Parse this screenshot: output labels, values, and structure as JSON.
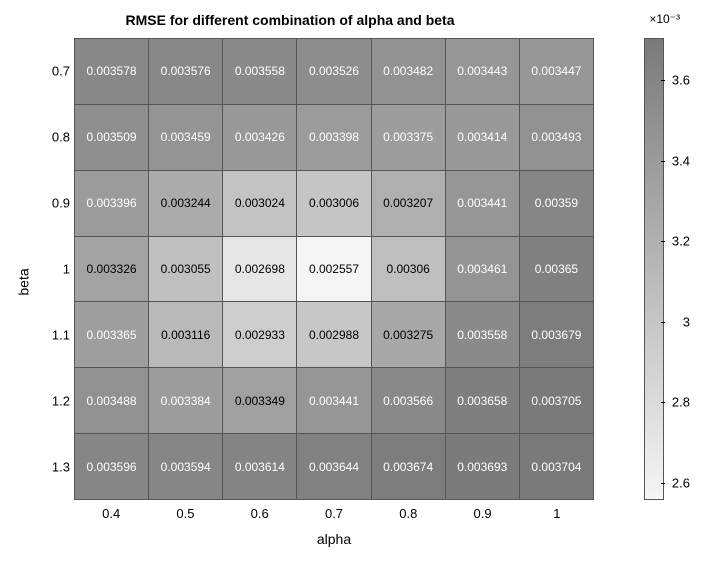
{
  "title": "RMSE for different combination of alpha and beta",
  "title_fontsize": 14,
  "xlabel": "alpha",
  "ylabel": "beta",
  "label_fontsize": 14,
  "tick_fontsize": 13,
  "cell_fontsize": 12,
  "background_color": "#ffffff",
  "grid_color": "#555555",
  "text_color_light": "#ffffff",
  "text_color_dark": "#000000",
  "text_threshold": 0.00335,
  "colormap": {
    "low_color": "#f5f5f5",
    "high_color": "#7a7a7a"
  },
  "vmin": 0.002557,
  "vmax": 0.003705,
  "exp_label": "×10⁻³",
  "x_ticks": [
    "0.4",
    "0.5",
    "0.6",
    "0.7",
    "0.8",
    "0.9",
    "1"
  ],
  "y_ticks": [
    "0.7",
    "0.8",
    "0.9",
    "1",
    "1.1",
    "1.2",
    "1.3"
  ],
  "colorbar_ticks": [
    {
      "label": "3.6",
      "value": 0.0036
    },
    {
      "label": "3.4",
      "value": 0.0034
    },
    {
      "label": "3.2",
      "value": 0.0032
    },
    {
      "label": "3",
      "value": 0.003
    },
    {
      "label": "2.8",
      "value": 0.0028
    },
    {
      "label": "2.6",
      "value": 0.0026
    }
  ],
  "heatmap": {
    "type": "heatmap",
    "rows": [
      {
        "label": "0.7",
        "cells": [
          {
            "text": "0.003578",
            "value": 0.003578
          },
          {
            "text": "0.003576",
            "value": 0.003576
          },
          {
            "text": "0.003558",
            "value": 0.003558
          },
          {
            "text": "0.003526",
            "value": 0.003526
          },
          {
            "text": "0.003482",
            "value": 0.003482
          },
          {
            "text": "0.003443",
            "value": 0.003443
          },
          {
            "text": "0.003447",
            "value": 0.003447
          }
        ]
      },
      {
        "label": "0.8",
        "cells": [
          {
            "text": "0.003509",
            "value": 0.003509
          },
          {
            "text": "0.003459",
            "value": 0.003459
          },
          {
            "text": "0.003426",
            "value": 0.003426
          },
          {
            "text": "0.003398",
            "value": 0.003398
          },
          {
            "text": "0.003375",
            "value": 0.003375
          },
          {
            "text": "0.003414",
            "value": 0.003414
          },
          {
            "text": "0.003493",
            "value": 0.003493
          }
        ]
      },
      {
        "label": "0.9",
        "cells": [
          {
            "text": "0.003396",
            "value": 0.003396
          },
          {
            "text": "0.003244",
            "value": 0.003244
          },
          {
            "text": "0.003024",
            "value": 0.003024
          },
          {
            "text": "0.003006",
            "value": 0.003006
          },
          {
            "text": "0.003207",
            "value": 0.003207
          },
          {
            "text": "0.003441",
            "value": 0.003441
          },
          {
            "text": "0.00359",
            "value": 0.00359
          }
        ]
      },
      {
        "label": "1",
        "cells": [
          {
            "text": "0.003326",
            "value": 0.003326
          },
          {
            "text": "0.003055",
            "value": 0.003055
          },
          {
            "text": "0.002698",
            "value": 0.002698
          },
          {
            "text": "0.002557",
            "value": 0.002557
          },
          {
            "text": "0.00306",
            "value": 0.00306
          },
          {
            "text": "0.003461",
            "value": 0.003461
          },
          {
            "text": "0.00365",
            "value": 0.00365
          }
        ]
      },
      {
        "label": "1.1",
        "cells": [
          {
            "text": "0.003365",
            "value": 0.003365
          },
          {
            "text": "0.003116",
            "value": 0.003116
          },
          {
            "text": "0.002933",
            "value": 0.002933
          },
          {
            "text": "0.002988",
            "value": 0.002988
          },
          {
            "text": "0.003275",
            "value": 0.003275
          },
          {
            "text": "0.003558",
            "value": 0.003558
          },
          {
            "text": "0.003679",
            "value": 0.003679
          }
        ]
      },
      {
        "label": "1.2",
        "cells": [
          {
            "text": "0.003488",
            "value": 0.003488
          },
          {
            "text": "0.003384",
            "value": 0.003384
          },
          {
            "text": "0.003349",
            "value": 0.003349
          },
          {
            "text": "0.003441",
            "value": 0.003441
          },
          {
            "text": "0.003566",
            "value": 0.003566
          },
          {
            "text": "0.003658",
            "value": 0.003658
          },
          {
            "text": "0.003705",
            "value": 0.003705
          }
        ]
      },
      {
        "label": "1.3",
        "cells": [
          {
            "text": "0.003596",
            "value": 0.003596
          },
          {
            "text": "0.003594",
            "value": 0.003594
          },
          {
            "text": "0.003614",
            "value": 0.003614
          },
          {
            "text": "0.003644",
            "value": 0.003644
          },
          {
            "text": "0.003674",
            "value": 0.003674
          },
          {
            "text": "0.003693",
            "value": 0.003693
          },
          {
            "text": "0.003704",
            "value": 0.003704
          }
        ]
      }
    ]
  }
}
